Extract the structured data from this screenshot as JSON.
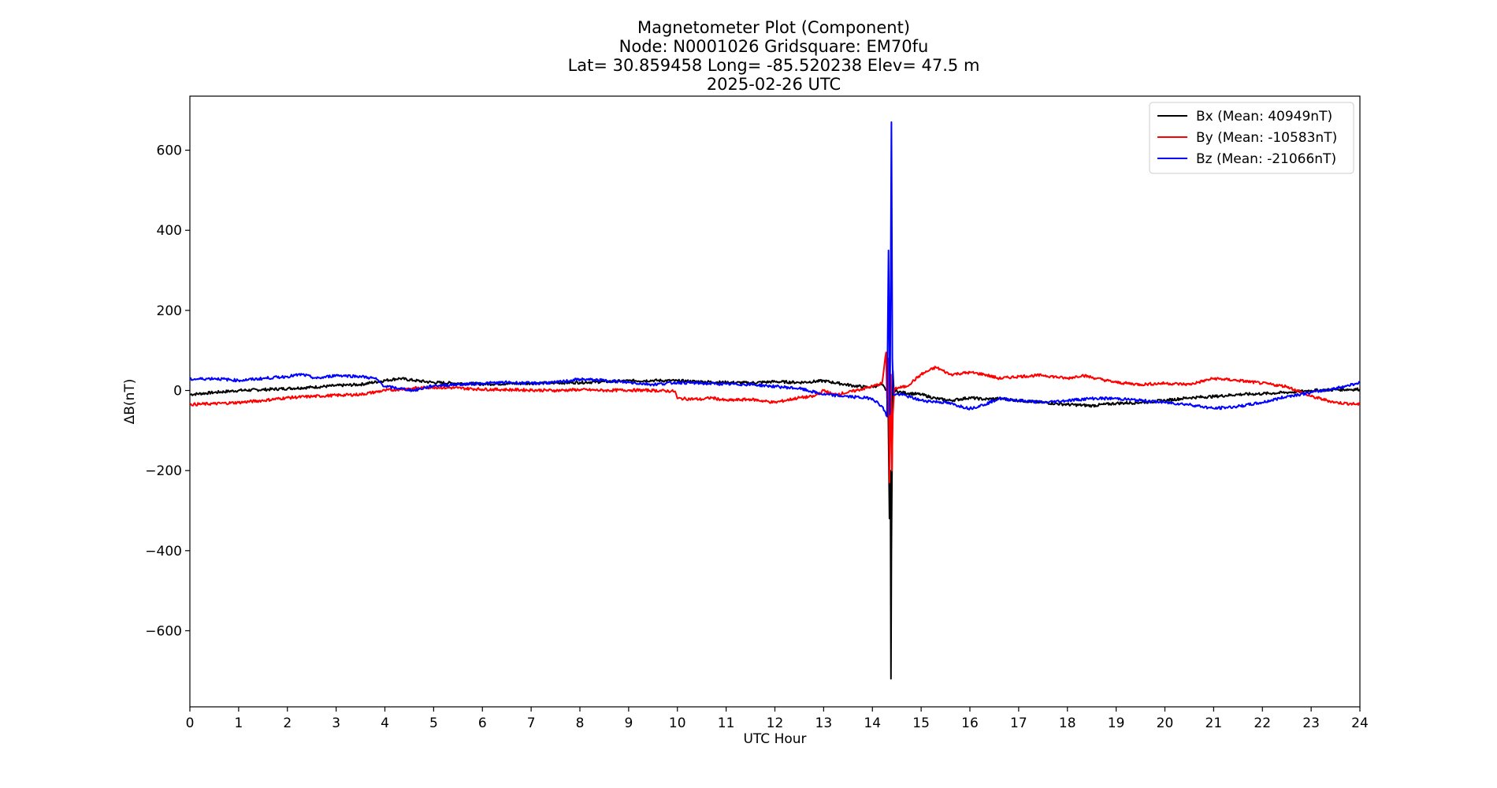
{
  "chart_data": {
    "type": "line",
    "title_lines": [
      "Magnetometer Plot (Component)",
      "Node:  N0001026     Gridsquare:  EM70fu",
      "Lat= 30.859458    Long= -85.520238    Elev= 47.5 m",
      "2025-02-26  UTC"
    ],
    "xlabel": "UTC Hour",
    "ylabel": "ΔB(nT)",
    "xlim": [
      0,
      24
    ],
    "ylim": [
      -790,
      735
    ],
    "xticks": [
      0,
      1,
      2,
      3,
      4,
      5,
      6,
      7,
      8,
      9,
      10,
      11,
      12,
      13,
      14,
      15,
      16,
      17,
      18,
      19,
      20,
      21,
      22,
      23,
      24
    ],
    "xtick_labels": [
      "0",
      "1",
      "2",
      "3",
      "4",
      "5",
      "6",
      "7",
      "8",
      "9",
      "10",
      "11",
      "12",
      "13",
      "14",
      "15",
      "16",
      "17",
      "18",
      "19",
      "20",
      "21",
      "22",
      "23",
      "24"
    ],
    "yticks": [
      -600,
      -400,
      -200,
      0,
      200,
      400,
      600
    ],
    "ytick_labels": [
      "−600",
      "−400",
      "−200",
      "0",
      "200",
      "400",
      "600"
    ],
    "grid": false,
    "legend_position": "top-right",
    "series": [
      {
        "name": "Bx (Mean: 40949nT)",
        "color": "#000000",
        "points": [
          [
            0,
            -10
          ],
          [
            0.5,
            -5
          ],
          [
            1,
            0
          ],
          [
            1.5,
            2
          ],
          [
            2,
            5
          ],
          [
            2.5,
            8
          ],
          [
            3,
            12
          ],
          [
            3.5,
            15
          ],
          [
            4,
            25
          ],
          [
            4.3,
            30
          ],
          [
            4.6,
            25
          ],
          [
            5,
            20
          ],
          [
            5.5,
            18
          ],
          [
            6,
            16
          ],
          [
            6.5,
            17
          ],
          [
            7,
            18
          ],
          [
            7.5,
            19
          ],
          [
            8,
            20
          ],
          [
            8.5,
            22
          ],
          [
            9,
            24
          ],
          [
            9.5,
            25
          ],
          [
            10,
            24
          ],
          [
            10.5,
            22
          ],
          [
            11,
            20
          ],
          [
            11.5,
            19
          ],
          [
            12,
            22
          ],
          [
            12.5,
            20
          ],
          [
            13,
            24
          ],
          [
            13.3,
            18
          ],
          [
            13.6,
            12
          ],
          [
            13.9,
            8
          ],
          [
            14.2,
            14
          ],
          [
            14.32,
            -5
          ],
          [
            14.35,
            -320
          ],
          [
            14.37,
            -200
          ],
          [
            14.38,
            -720
          ],
          [
            14.39,
            -400
          ],
          [
            14.4,
            -240
          ],
          [
            14.42,
            50
          ],
          [
            14.44,
            0
          ],
          [
            14.6,
            -5
          ],
          [
            15,
            -10
          ],
          [
            15.3,
            -20
          ],
          [
            15.6,
            -25
          ],
          [
            16,
            -18
          ],
          [
            16.3,
            -22
          ],
          [
            16.6,
            -20
          ],
          [
            17,
            -25
          ],
          [
            17.5,
            -30
          ],
          [
            18,
            -35
          ],
          [
            18.5,
            -38
          ],
          [
            19,
            -32
          ],
          [
            19.5,
            -30
          ],
          [
            20,
            -25
          ],
          [
            20.5,
            -18
          ],
          [
            21,
            -15
          ],
          [
            21.5,
            -10
          ],
          [
            22,
            -8
          ],
          [
            22.5,
            -5
          ],
          [
            23,
            0
          ],
          [
            23.5,
            2
          ],
          [
            24,
            3
          ]
        ]
      },
      {
        "name": "By (Mean: -10583nT)",
        "color": "#ff0000",
        "points": [
          [
            0,
            -35
          ],
          [
            0.5,
            -33
          ],
          [
            1,
            -30
          ],
          [
            1.5,
            -25
          ],
          [
            2,
            -18
          ],
          [
            2.5,
            -15
          ],
          [
            3,
            -12
          ],
          [
            3.5,
            -10
          ],
          [
            4,
            0
          ],
          [
            4.5,
            5
          ],
          [
            5,
            8
          ],
          [
            5.5,
            6
          ],
          [
            6,
            3
          ],
          [
            6.5,
            2
          ],
          [
            7,
            1
          ],
          [
            7.5,
            0
          ],
          [
            8,
            2
          ],
          [
            8.5,
            0
          ],
          [
            9,
            1
          ],
          [
            9.5,
            0
          ],
          [
            9.95,
            -2
          ],
          [
            10,
            -20
          ],
          [
            10.5,
            -22
          ],
          [
            10.7,
            -18
          ],
          [
            11,
            -25
          ],
          [
            11.5,
            -22
          ],
          [
            12,
            -30
          ],
          [
            12.5,
            -18
          ],
          [
            12.8,
            -15
          ],
          [
            13,
            0
          ],
          [
            13.2,
            -10
          ],
          [
            13.5,
            -5
          ],
          [
            14,
            10
          ],
          [
            14.2,
            18
          ],
          [
            14.28,
            95
          ],
          [
            14.3,
            -20
          ],
          [
            14.33,
            80
          ],
          [
            14.35,
            -230
          ],
          [
            14.38,
            40
          ],
          [
            14.4,
            -200
          ],
          [
            14.42,
            -60
          ],
          [
            14.45,
            5
          ],
          [
            14.7,
            10
          ],
          [
            15,
            40
          ],
          [
            15.3,
            58
          ],
          [
            15.6,
            40
          ],
          [
            16,
            45
          ],
          [
            16.3,
            40
          ],
          [
            16.6,
            30
          ],
          [
            17,
            35
          ],
          [
            17.5,
            38
          ],
          [
            18,
            30
          ],
          [
            18.3,
            38
          ],
          [
            18.6,
            30
          ],
          [
            19,
            20
          ],
          [
            19.5,
            15
          ],
          [
            20,
            18
          ],
          [
            20.5,
            15
          ],
          [
            21,
            30
          ],
          [
            21.5,
            25
          ],
          [
            22,
            18
          ],
          [
            22.5,
            10
          ],
          [
            23,
            -15
          ],
          [
            23.5,
            -30
          ],
          [
            24,
            -35
          ]
        ]
      },
      {
        "name": "Bz (Mean: -21066nT)",
        "color": "#0000ff",
        "points": [
          [
            0,
            28
          ],
          [
            0.5,
            30
          ],
          [
            1,
            25
          ],
          [
            1.5,
            30
          ],
          [
            2,
            35
          ],
          [
            2.3,
            40
          ],
          [
            2.6,
            30
          ],
          [
            3,
            38
          ],
          [
            3.5,
            35
          ],
          [
            3.8,
            30
          ],
          [
            4,
            10
          ],
          [
            4.3,
            5
          ],
          [
            4.6,
            0
          ],
          [
            5,
            12
          ],
          [
            5.5,
            15
          ],
          [
            6,
            18
          ],
          [
            6.5,
            20
          ],
          [
            7,
            18
          ],
          [
            7.5,
            20
          ],
          [
            8,
            28
          ],
          [
            8.5,
            25
          ],
          [
            9,
            20
          ],
          [
            9.5,
            15
          ],
          [
            10,
            20
          ],
          [
            10.5,
            18
          ],
          [
            11,
            16
          ],
          [
            11.5,
            15
          ],
          [
            12,
            10
          ],
          [
            12.5,
            5
          ],
          [
            13,
            -10
          ],
          [
            13.5,
            -15
          ],
          [
            14,
            -20
          ],
          [
            14.2,
            -40
          ],
          [
            14.3,
            -65
          ],
          [
            14.33,
            350
          ],
          [
            14.36,
            -60
          ],
          [
            14.39,
            670
          ],
          [
            14.41,
            80
          ],
          [
            14.43,
            -10
          ],
          [
            14.6,
            -10
          ],
          [
            15,
            -25
          ],
          [
            15.5,
            -30
          ],
          [
            16,
            -45
          ],
          [
            16.3,
            -35
          ],
          [
            16.6,
            -20
          ],
          [
            17,
            -25
          ],
          [
            17.5,
            -30
          ],
          [
            18,
            -25
          ],
          [
            18.5,
            -20
          ],
          [
            19,
            -20
          ],
          [
            19.5,
            -25
          ],
          [
            20,
            -30
          ],
          [
            20.5,
            -35
          ],
          [
            21,
            -45
          ],
          [
            21.5,
            -40
          ],
          [
            22,
            -30
          ],
          [
            22.5,
            -15
          ],
          [
            23,
            -5
          ],
          [
            23.5,
            5
          ],
          [
            24,
            20
          ]
        ]
      }
    ]
  }
}
